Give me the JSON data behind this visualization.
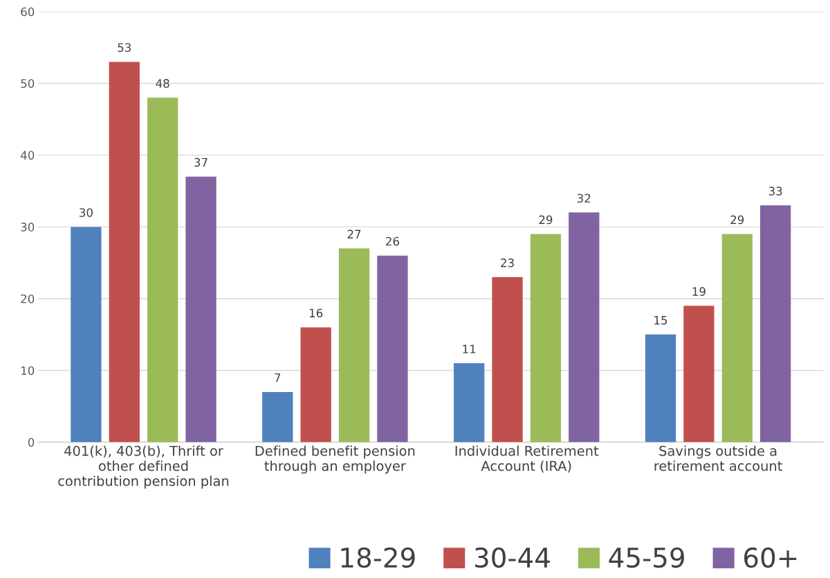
{
  "chart_data": {
    "type": "bar",
    "categories": [
      "401(k), 403(b), Thrift or\nother defined\ncontribution pension plan",
      "Defined benefit pension\nthrough an employer",
      "Individual Retirement\nAccount (IRA)",
      "Savings outside a\nretirement account"
    ],
    "series": [
      {
        "name": "18-29",
        "color": "#4f81bd",
        "values": [
          30,
          7,
          11,
          15
        ]
      },
      {
        "name": "30-44",
        "color": "#c0504d",
        "values": [
          53,
          16,
          23,
          19
        ]
      },
      {
        "name": "45-59",
        "color": "#9bbb59",
        "values": [
          48,
          27,
          29,
          29
        ]
      },
      {
        "name": "60+",
        "color": "#8064a2",
        "values": [
          37,
          26,
          32,
          33
        ]
      }
    ],
    "ylim": [
      0,
      60
    ],
    "yticks": [
      0,
      10,
      20,
      30,
      40,
      50,
      60
    ],
    "grid": "y",
    "data_labels": true,
    "legend": "bottom right"
  }
}
